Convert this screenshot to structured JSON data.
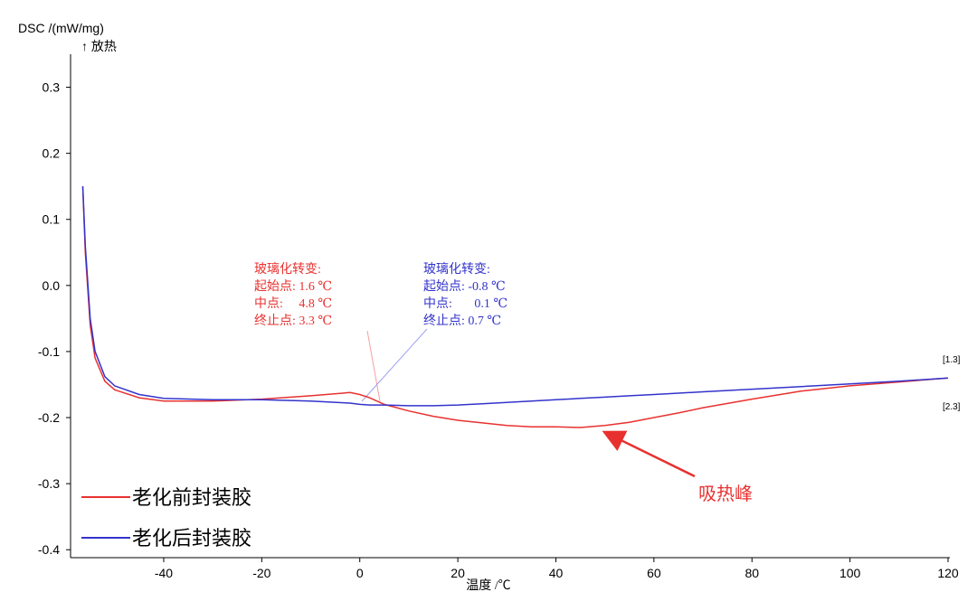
{
  "chart_data": {
    "type": "line",
    "y_label": "DSC /(mW/mg)",
    "y_note": "↑ 放热",
    "x_label": "温度 /℃",
    "xlim": [
      -59,
      120
    ],
    "xticks": [
      -40,
      -20,
      0,
      20,
      40,
      60,
      80,
      100,
      120
    ],
    "ylim": [
      -0.412,
      0.35
    ],
    "yticks": [
      0.3,
      0.2,
      0.1,
      {
        "value": 0,
        "label": "0.0"
      },
      -0.1,
      -0.2,
      -0.3,
      -0.4
    ],
    "x": [
      -56.5,
      -56,
      -55,
      -54,
      -52,
      -50,
      -45,
      -40,
      -30,
      -20,
      -10,
      -2,
      0,
      2,
      5,
      10,
      15,
      20,
      25,
      30,
      35,
      40,
      45,
      50,
      55,
      60,
      65,
      70,
      80,
      90,
      100,
      110,
      120
    ],
    "series": [
      {
        "name": "老化前封装胶",
        "color": "#e8312f",
        "end_label": "[2.3]",
        "values": [
          0.15,
          0.05,
          -0.06,
          -0.11,
          -0.145,
          -0.158,
          -0.17,
          -0.175,
          -0.175,
          -0.172,
          -0.167,
          -0.162,
          -0.165,
          -0.17,
          -0.18,
          -0.19,
          -0.198,
          -0.204,
          -0.208,
          -0.212,
          -0.214,
          -0.214,
          -0.215,
          -0.212,
          -0.207,
          -0.2,
          -0.193,
          -0.185,
          -0.172,
          -0.16,
          -0.152,
          -0.146,
          -0.14
        ]
      },
      {
        "name": "老化后封装胶",
        "color": "#3333cc",
        "end_label": "[1.3]",
        "values": [
          0.15,
          0.06,
          -0.05,
          -0.1,
          -0.138,
          -0.152,
          -0.165,
          -0.171,
          -0.173,
          -0.173,
          -0.175,
          -0.178,
          -0.18,
          -0.181,
          -0.181,
          -0.182,
          -0.182,
          -0.181,
          -0.179,
          -0.177,
          -0.175,
          -0.173,
          -0.171,
          -0.169,
          -0.167,
          -0.165,
          -0.163,
          -0.161,
          -0.157,
          -0.153,
          -0.149,
          -0.145,
          -0.14
        ]
      }
    ],
    "annotations": {
      "red": [
        "玻璃化转变:",
        "起始点: 1.6 ℃",
        "中点:     4.8 ℃",
        "终止点: 3.3 ℃"
      ],
      "blue": [
        "玻璃化转变:",
        "起始点: -0.8 ℃",
        "中点:       0.1 ℃",
        "终止点: 0.7 ℃"
      ],
      "peak": "吸热峰"
    }
  }
}
